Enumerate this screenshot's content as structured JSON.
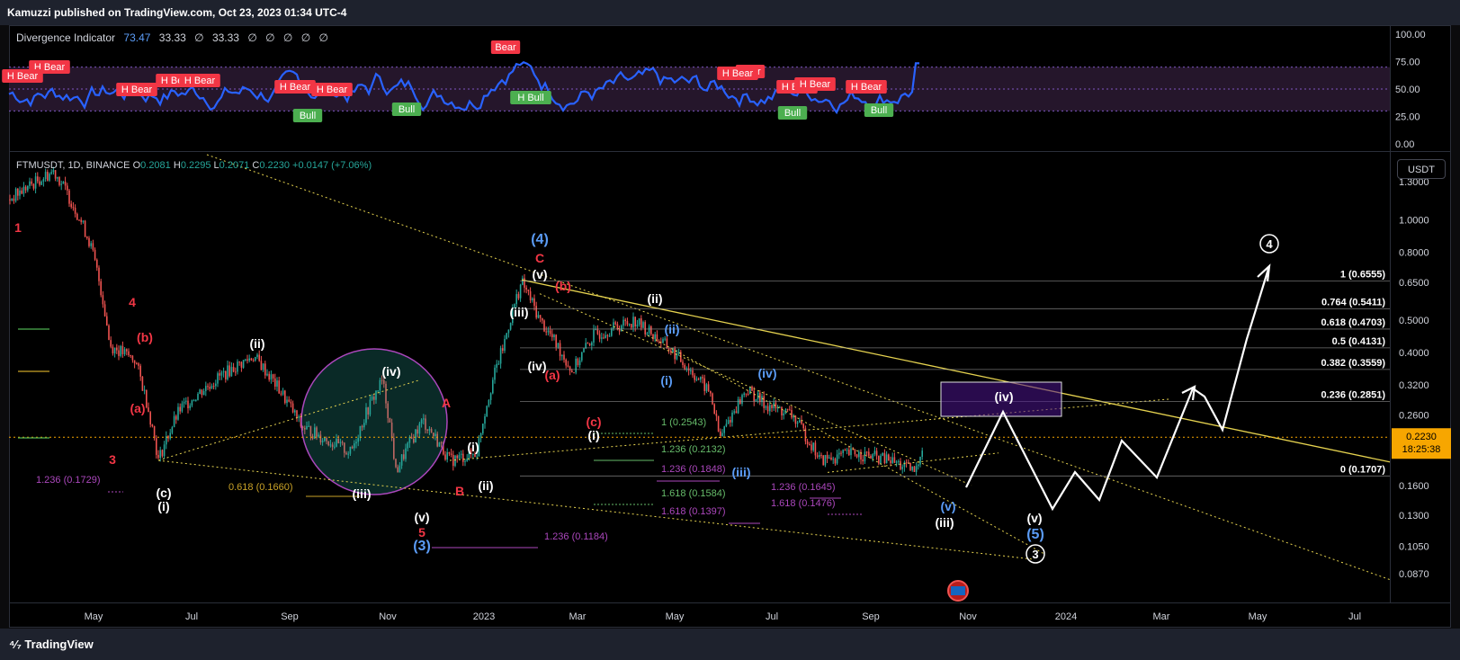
{
  "header": {
    "published": "Kamuzzi published on TradingView.com, Oct 23, 2023 01:34 UTC-4"
  },
  "indicator": {
    "name": "Divergence Indicator",
    "values": [
      "73.47",
      "33.33",
      "∅",
      "33.33",
      "∅",
      "∅",
      "∅",
      "∅",
      "∅"
    ],
    "axis": [
      "100.00",
      "75.00",
      "50.00",
      "25.00",
      "0.00"
    ]
  },
  "symbol": {
    "name": "FTMUSDT, 1D, BINANCE",
    "open_label": "O",
    "open": "0.2081",
    "high_label": "H",
    "high": "0.2295",
    "low_label": "L",
    "low": "0.2071",
    "close_label": "C",
    "close": "0.2230",
    "change": "+0.0147 (+7.06%)",
    "currency": "USDT"
  },
  "price_axis": {
    "ticks": [
      "1.3000",
      "1.0000",
      "0.8000",
      "0.6500",
      "0.5000",
      "0.4000",
      "0.3200",
      "0.2600",
      "0.1600",
      "0.1300",
      "0.1050",
      "0.0870"
    ],
    "last_price": "0.2230",
    "countdown": "18:25:38"
  },
  "time_axis": [
    "May",
    "Jul",
    "Sep",
    "Nov",
    "2023",
    "Mar",
    "May",
    "Jul",
    "Sep",
    "Nov",
    "2024",
    "Mar",
    "May",
    "Jul"
  ],
  "fib_right": [
    {
      "text": "1 (0.6555)"
    },
    {
      "text": "0.764 (0.5411)"
    },
    {
      "text": "0.618 (0.4703)"
    },
    {
      "text": "0.5 (0.4131)"
    },
    {
      "text": "0.382 (0.3559)"
    },
    {
      "text": "0.236 (0.2851)"
    },
    {
      "text": "0 (0.1707)"
    }
  ],
  "fib_ext": [
    {
      "text": "1.236 (0.1729)"
    },
    {
      "text": "0.618 (0.1660)"
    },
    {
      "text": "1.236 (0.1184)"
    },
    {
      "text": "1 (0.2543)"
    },
    {
      "text": "1.236 (0.2132)"
    },
    {
      "text": "1.236 (0.1848)"
    },
    {
      "text": "1.618 (0.1584)"
    },
    {
      "text": "1.618 (0.1397)"
    },
    {
      "text": "1.236 (0.1645)"
    },
    {
      "text": "1.618 (0.1476)"
    }
  ],
  "wave_labels": [
    {
      "text": "1"
    },
    {
      "text": "4"
    },
    {
      "text": "(b)"
    },
    {
      "text": "(a)"
    },
    {
      "text": "3"
    },
    {
      "text": "(c)"
    },
    {
      "text": "(i)"
    },
    {
      "text": "(ii)"
    },
    {
      "text": "(iv)"
    },
    {
      "text": "(iii)"
    },
    {
      "text": "A"
    },
    {
      "text": "(v)"
    },
    {
      "text": "5"
    },
    {
      "text": "(3)"
    },
    {
      "text": "B"
    },
    {
      "text": "(i)"
    },
    {
      "text": "(ii)"
    },
    {
      "text": "(iii)"
    },
    {
      "text": "(iv)"
    },
    {
      "text": "(v)"
    },
    {
      "text": "C"
    },
    {
      "text": "(4)"
    },
    {
      "text": "(b)"
    },
    {
      "text": "(a)"
    },
    {
      "text": "(c)"
    },
    {
      "text": "(i)"
    },
    {
      "text": "(ii)"
    },
    {
      "text": "(ii)"
    },
    {
      "text": "(i)"
    },
    {
      "text": "(iii)"
    },
    {
      "text": "(iv)"
    },
    {
      "text": "(v)"
    },
    {
      "text": "(iii)"
    },
    {
      "text": "(iv)"
    },
    {
      "text": "(v)"
    },
    {
      "text": "(5)"
    },
    {
      "text": "3"
    },
    {
      "text": "4"
    }
  ],
  "divergence_tags": [
    {
      "text": "Bear"
    },
    {
      "text": "H Bear"
    },
    {
      "text": "H Bear"
    },
    {
      "text": "H Bear"
    },
    {
      "text": "H Bear"
    },
    {
      "text": "H Bear"
    },
    {
      "text": "H Bear"
    },
    {
      "text": "Bear"
    },
    {
      "text": "H Bull"
    },
    {
      "text": "H Bear"
    },
    {
      "text": "H Bear"
    },
    {
      "text": "H Bear"
    },
    {
      "text": "H Bear"
    },
    {
      "text": "H Bear"
    },
    {
      "text": "Bull"
    },
    {
      "text": "Bull"
    },
    {
      "text": "Bull"
    },
    {
      "text": "Bull"
    }
  ],
  "footer": {
    "brand": "TradingView"
  },
  "colors": {
    "bear": "#f23645",
    "bull": "#4caf50",
    "rsi": "#2962ff",
    "accent": "#f7a600"
  },
  "chart_data": {
    "type": "line",
    "title": "",
    "series": [],
    "x": [
      "May",
      "Jul",
      "Sep",
      "Nov",
      "2023",
      "Mar",
      "May",
      "Jul",
      "Sep",
      "Nov",
      "2024",
      "Mar",
      "May",
      "Jul"
    ],
    "ylim": [
      0.087,
      1.3
    ],
    "log_scale": true,
    "grid": false
  }
}
